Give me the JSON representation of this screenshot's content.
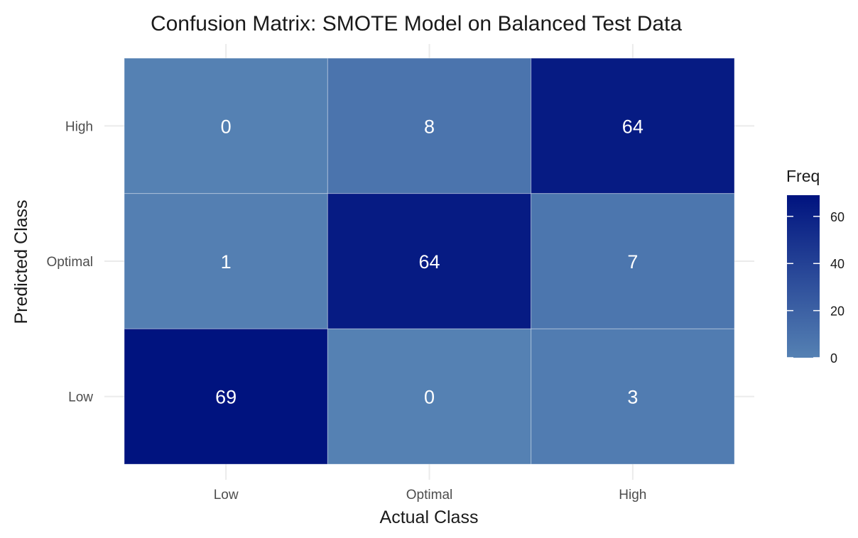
{
  "chart_data": {
    "type": "heatmap",
    "title": "Confusion Matrix: SMOTE Model on Balanced Test Data",
    "xlabel": "Actual Class",
    "ylabel": "Predicted Class",
    "x_categories": [
      "Low",
      "Optimal",
      "High"
    ],
    "y_categories": [
      "Low",
      "Optimal",
      "High"
    ],
    "cells": [
      {
        "actual": "Low",
        "predicted": "High",
        "value": 0
      },
      {
        "actual": "Optimal",
        "predicted": "High",
        "value": 8
      },
      {
        "actual": "High",
        "predicted": "High",
        "value": 64
      },
      {
        "actual": "Low",
        "predicted": "Optimal",
        "value": 1
      },
      {
        "actual": "Optimal",
        "predicted": "Optimal",
        "value": 64
      },
      {
        "actual": "High",
        "predicted": "Optimal",
        "value": 7
      },
      {
        "actual": "Low",
        "predicted": "Low",
        "value": 69
      },
      {
        "actual": "Optimal",
        "predicted": "Low",
        "value": 0
      },
      {
        "actual": "High",
        "predicted": "Low",
        "value": 3
      }
    ],
    "legend": {
      "title": "Freq",
      "ticks": [
        0,
        20,
        40,
        60
      ],
      "range": [
        0,
        69
      ],
      "position": "right"
    },
    "colors": {
      "low": "#5581b3",
      "high": "#00137f"
    },
    "grid": true
  }
}
